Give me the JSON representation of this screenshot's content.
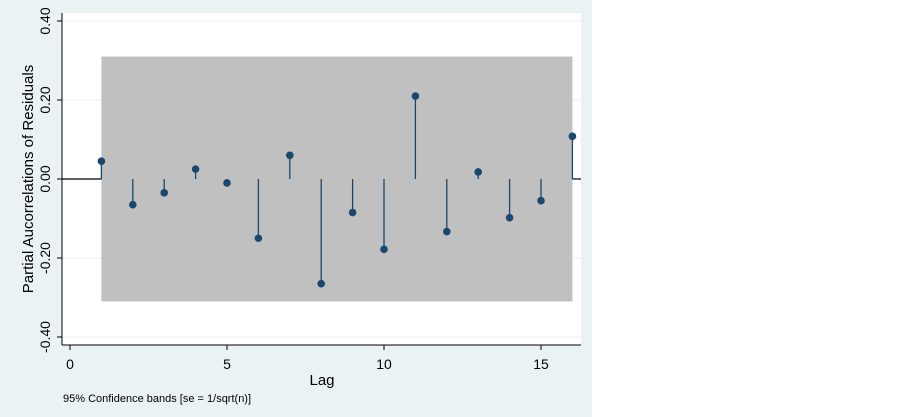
{
  "chart_data": {
    "type": "stem",
    "ylabel": "Partial Aucorrelations of Residuals",
    "xlabel": "Lag",
    "note": "95% Confidence bands [se = 1/sqrt(n)]",
    "xlim": [
      0,
      16
    ],
    "ylim": [
      -0.4,
      0.4
    ],
    "xticks": [
      0,
      5,
      10,
      15
    ],
    "yticks": [
      0.4,
      0.2,
      0.0,
      -0.2,
      -0.4
    ],
    "ytick_labels": [
      "0.40",
      "0.20",
      "0.00",
      "-0.20",
      "-0.40"
    ],
    "confidence_band": 0.31,
    "grid": "horizontal",
    "lags": [
      1,
      2,
      3,
      4,
      5,
      6,
      7,
      8,
      9,
      10,
      11,
      12,
      13,
      14,
      15,
      16
    ],
    "values": [
      0.045,
      -0.065,
      -0.035,
      0.025,
      -0.01,
      -0.15,
      0.06,
      -0.265,
      -0.085,
      -0.178,
      0.21,
      -0.133,
      0.018,
      -0.098,
      -0.055,
      0.108
    ],
    "colors": {
      "marker": "#1a476f",
      "band": "#c0c0c0",
      "background": "#eaf2f3",
      "plot": "#ffffff",
      "grid": "#eaf2f3"
    }
  }
}
